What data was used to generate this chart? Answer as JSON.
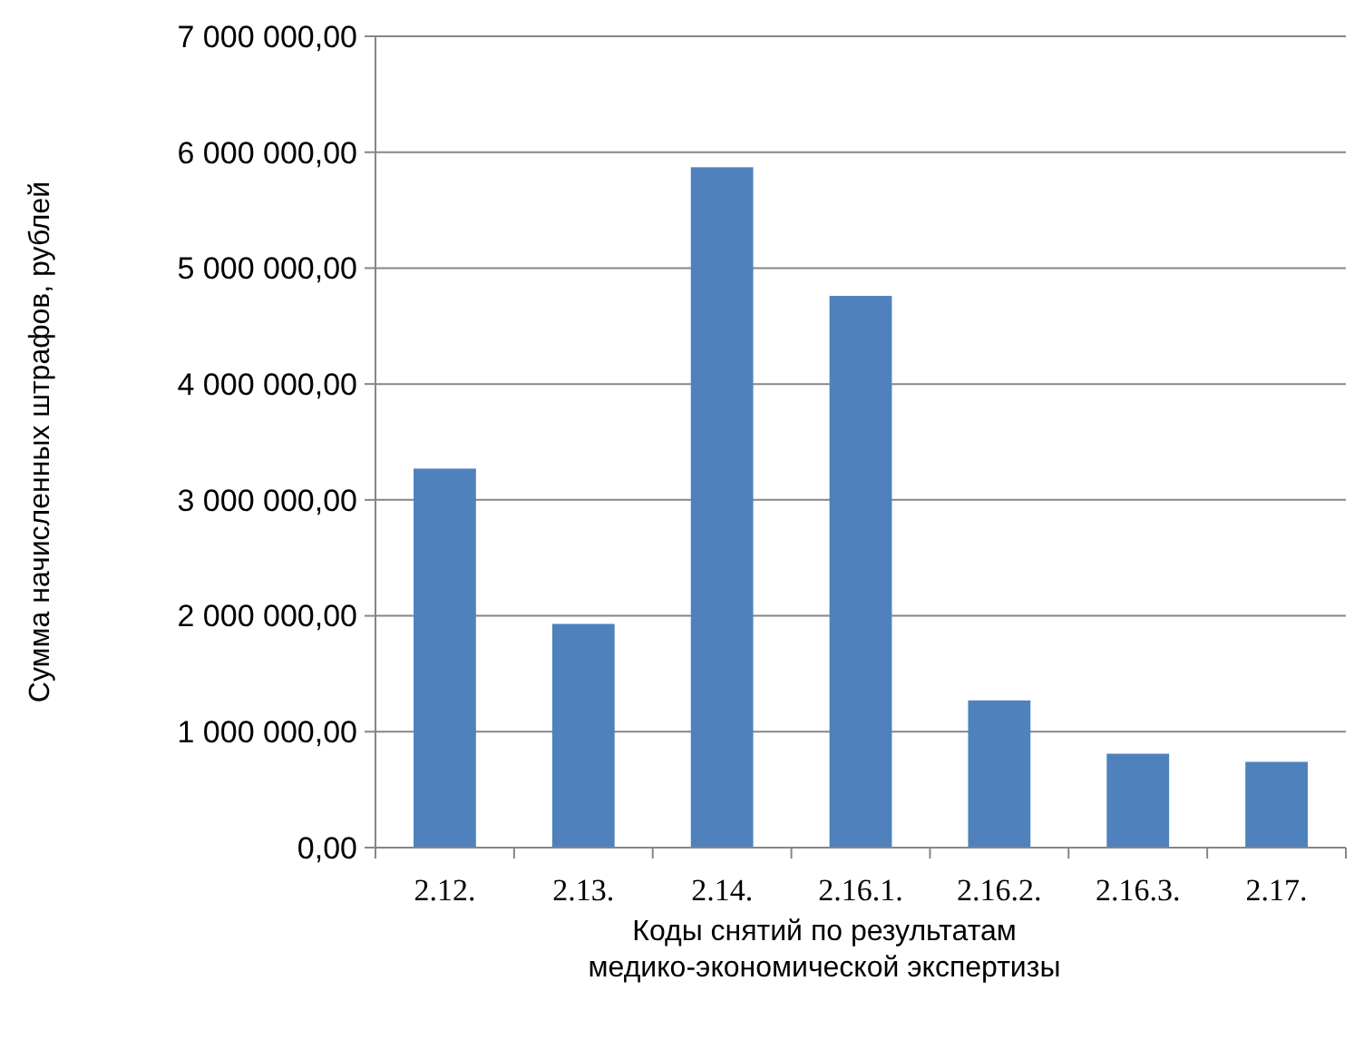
{
  "chart_data": {
    "type": "bar",
    "xlabel": "Коды снятий по результатам\nмедико-экономической экспертизы",
    "ylabel": "Сумма начисленных штрафов, рублей",
    "categories": [
      "2.12.",
      "2.13.",
      "2.14.",
      "2.16.1.",
      "2.16.2.",
      "2.16.3.",
      "2.17."
    ],
    "values": [
      3270000,
      1930000,
      5870000,
      4760000,
      1270000,
      810000,
      740000
    ],
    "color": "#4f81bd",
    "ylim": [
      0,
      7000000
    ],
    "yticks": [
      {
        "value": 0,
        "label": "0,00"
      },
      {
        "value": 1000000,
        "label": "1 000 000,00"
      },
      {
        "value": 2000000,
        "label": "2 000 000,00"
      },
      {
        "value": 3000000,
        "label": "3 000 000,00"
      },
      {
        "value": 4000000,
        "label": "4 000 000,00"
      },
      {
        "value": 5000000,
        "label": "5 000 000,00"
      },
      {
        "value": 6000000,
        "label": "6 000 000,00"
      },
      {
        "value": 7000000,
        "label": "7 000 000,00"
      }
    ],
    "grid": "y"
  }
}
